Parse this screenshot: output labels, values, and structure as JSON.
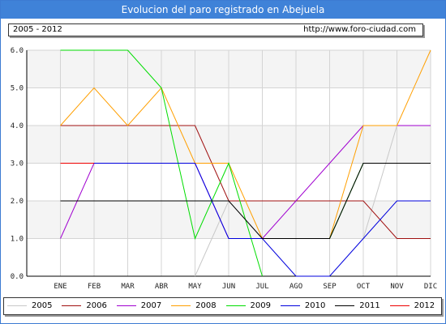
{
  "header": {
    "title": "Evolucion del paro registrado en Abejuela"
  },
  "info": {
    "period": "2005 - 2012",
    "url": "http://www.foro-ciudad.com"
  },
  "chart_data": {
    "type": "line",
    "categories": [
      "ENE",
      "FEB",
      "MAR",
      "ABR",
      "MAY",
      "JUN",
      "JUL",
      "AGO",
      "SEP",
      "OCT",
      "NOV",
      "DIC"
    ],
    "ylim": [
      0,
      6
    ],
    "yticks": [
      "0.0",
      "1.0",
      "2.0",
      "3.0",
      "4.0",
      "5.0",
      "6.0"
    ],
    "grid": true,
    "legend": "bottom",
    "series": [
      {
        "name": "2005",
        "color": "#c8c8c8",
        "values": [
          null,
          null,
          null,
          null,
          0,
          2,
          1,
          null,
          null,
          1,
          4,
          null
        ]
      },
      {
        "name": "2006",
        "color": "#a01010",
        "values": [
          4,
          4,
          4,
          4,
          4,
          2,
          2,
          2,
          2,
          2,
          1,
          1
        ]
      },
      {
        "name": "2007",
        "color": "#a000d0",
        "values": [
          1,
          3,
          3,
          3,
          3,
          1,
          1,
          2,
          3,
          4,
          4,
          4
        ]
      },
      {
        "name": "2008",
        "color": "#ff9f00",
        "values": [
          4,
          5,
          4,
          5,
          3,
          3,
          1,
          1,
          1,
          4,
          4,
          6
        ]
      },
      {
        "name": "2009",
        "color": "#00dd00",
        "values": [
          6,
          6,
          6,
          5,
          1,
          3,
          0,
          null,
          1,
          3,
          null,
          null
        ]
      },
      {
        "name": "2010",
        "color": "#0000dd",
        "values": [
          null,
          3,
          3,
          3,
          3,
          1,
          1,
          0,
          0,
          1,
          2,
          2
        ]
      },
      {
        "name": "2011",
        "color": "#000000",
        "values": [
          2,
          2,
          2,
          2,
          2,
          2,
          1,
          1,
          1,
          3,
          3,
          3
        ]
      },
      {
        "name": "2012",
        "color": "#ee0000",
        "values": [
          3,
          3,
          null,
          null,
          null,
          null,
          null,
          null,
          null,
          null,
          null,
          null
        ]
      }
    ]
  }
}
